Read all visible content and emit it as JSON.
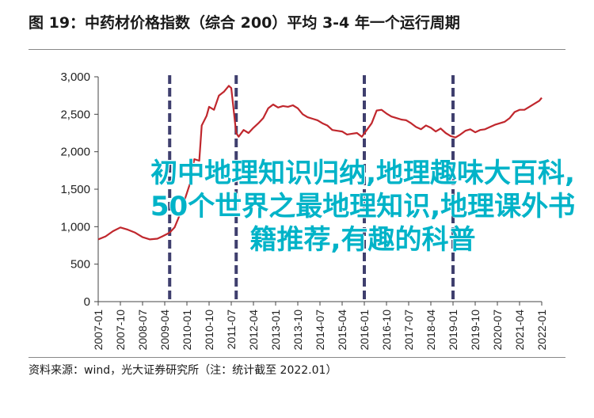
{
  "title": "图 19：中药材价格指数（综合 200）平均 3-4 年一个运行周期",
  "source": "资料来源：wind，光大证券研究所（注：统计截至 2022.01）",
  "overlay": {
    "lines": [
      "初中地理知识归纳,地理趣味大百科,",
      "50个世界之最地理知识,地理课外书",
      "籍推荐,有趣的科普"
    ],
    "color": "#00b3c8"
  },
  "chart_data": {
    "type": "line",
    "title": "",
    "xlabel": "",
    "ylabel": "",
    "ylim": [
      0,
      3000
    ],
    "yticks": [
      "0",
      "500",
      "1,000",
      "1,500",
      "2,000",
      "2,500",
      "3,000"
    ],
    "ytick_values": [
      0,
      500,
      1000,
      1500,
      2000,
      2500,
      3000
    ],
    "xticks": [
      "2007-01",
      "2007-10",
      "2008-07",
      "2009-04",
      "2010-01",
      "2010-10",
      "2011-07",
      "2012-04",
      "2013-01",
      "2013-10",
      "2014-07",
      "2015-04",
      "2016-01",
      "2016-10",
      "2017-07",
      "2018-04",
      "2019-01",
      "2019-10",
      "2020-07",
      "2021-04",
      "2022-01"
    ],
    "grid": false,
    "line_color": "#c0272d",
    "cycle_marker_color": "#3f3f6e",
    "cycle_markers": [
      "2009-06",
      "2011-09",
      "2016-01",
      "2019-01"
    ],
    "series": [
      {
        "x": [
          "2007-01",
          "2007-04",
          "2007-07",
          "2007-10",
          "2008-01",
          "2008-04",
          "2008-07",
          "2008-10",
          "2009-01",
          "2009-03",
          "2009-06",
          "2009-08",
          "2009-10",
          "2009-12",
          "2010-02",
          "2010-04",
          "2010-06",
          "2010-07",
          "2010-09",
          "2010-10",
          "2010-12",
          "2011-02",
          "2011-04",
          "2011-06",
          "2011-07",
          "2011-08",
          "2011-09",
          "2011-10",
          "2011-12",
          "2012-02",
          "2012-04",
          "2012-06",
          "2012-08",
          "2012-10",
          "2012-12",
          "2013-02",
          "2013-04",
          "2013-06",
          "2013-08",
          "2013-10",
          "2013-12",
          "2014-02",
          "2014-04",
          "2014-06",
          "2014-08",
          "2014-10",
          "2014-12",
          "2015-02",
          "2015-04",
          "2015-06",
          "2015-08",
          "2015-10",
          "2015-12",
          "2016-02",
          "2016-04",
          "2016-06",
          "2016-08",
          "2016-10",
          "2016-12",
          "2017-02",
          "2017-04",
          "2017-06",
          "2017-08",
          "2017-10",
          "2017-12",
          "2018-02",
          "2018-04",
          "2018-06",
          "2018-08",
          "2018-10",
          "2018-12",
          "2019-02",
          "2019-04",
          "2019-06",
          "2019-08",
          "2019-10",
          "2019-12",
          "2020-02",
          "2020-04",
          "2020-06",
          "2020-08",
          "2020-10",
          "2020-12",
          "2021-02",
          "2021-04",
          "2021-06",
          "2021-08",
          "2021-10",
          "2021-12",
          "2022-01"
        ],
        "values": [
          830,
          870,
          940,
          990,
          960,
          920,
          860,
          830,
          840,
          870,
          920,
          990,
          1150,
          1350,
          1550,
          1900,
          1880,
          2350,
          2480,
          2600,
          2560,
          2750,
          2800,
          2880,
          2850,
          2550,
          2250,
          2200,
          2290,
          2250,
          2320,
          2380,
          2450,
          2580,
          2630,
          2590,
          2610,
          2600,
          2620,
          2580,
          2500,
          2460,
          2440,
          2420,
          2380,
          2350,
          2290,
          2280,
          2270,
          2230,
          2240,
          2250,
          2200,
          2290,
          2380,
          2550,
          2560,
          2510,
          2470,
          2450,
          2430,
          2420,
          2380,
          2330,
          2300,
          2350,
          2320,
          2270,
          2310,
          2250,
          2210,
          2190,
          2230,
          2280,
          2300,
          2260,
          2290,
          2300,
          2330,
          2360,
          2380,
          2400,
          2450,
          2530,
          2560,
          2560,
          2600,
          2640,
          2680,
          2720
        ]
      }
    ]
  }
}
